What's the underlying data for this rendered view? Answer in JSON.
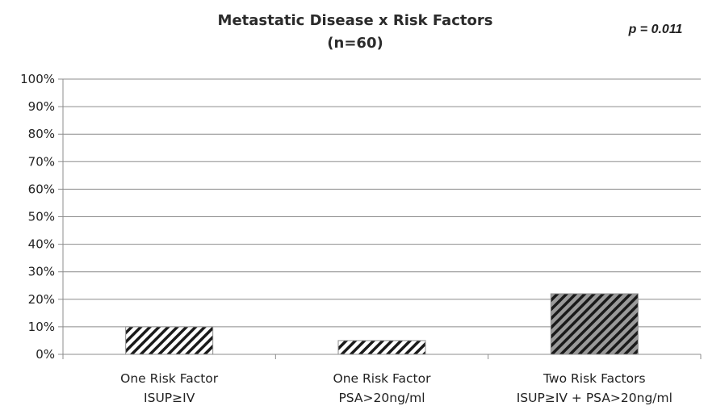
{
  "chart_data": {
    "type": "bar",
    "title": "Metastatic Disease x Risk Factors",
    "subtitle": "(n=60)",
    "annotation": "p = 0.011",
    "categories": [
      [
        "One Risk Factor",
        "ISUP≥IV"
      ],
      [
        "One Risk Factor",
        "PSA>20ng/ml"
      ],
      [
        "Two Risk Factors",
        "ISUP≥IV + PSA>20ng/ml"
      ]
    ],
    "values": [
      10,
      5,
      22
    ],
    "unit": "%",
    "ylim": [
      0,
      100
    ],
    "yticks": [
      "0%",
      "10%",
      "20%",
      "30%",
      "40%",
      "50%",
      "60%",
      "70%",
      "80%",
      "90%",
      "100%"
    ],
    "grid": true,
    "legend": "none",
    "bar_styles": [
      {
        "fill": "#ffffff",
        "stripe": "#1a1a1a"
      },
      {
        "fill": "#ffffff",
        "stripe": "#1a1a1a"
      },
      {
        "fill": "#9a9a9a",
        "stripe": "#1a1a1a"
      }
    ],
    "colors": {
      "grid": "#8c8c8c",
      "axis": "#8c8c8c",
      "bar_border": "#8c8c8c"
    }
  }
}
